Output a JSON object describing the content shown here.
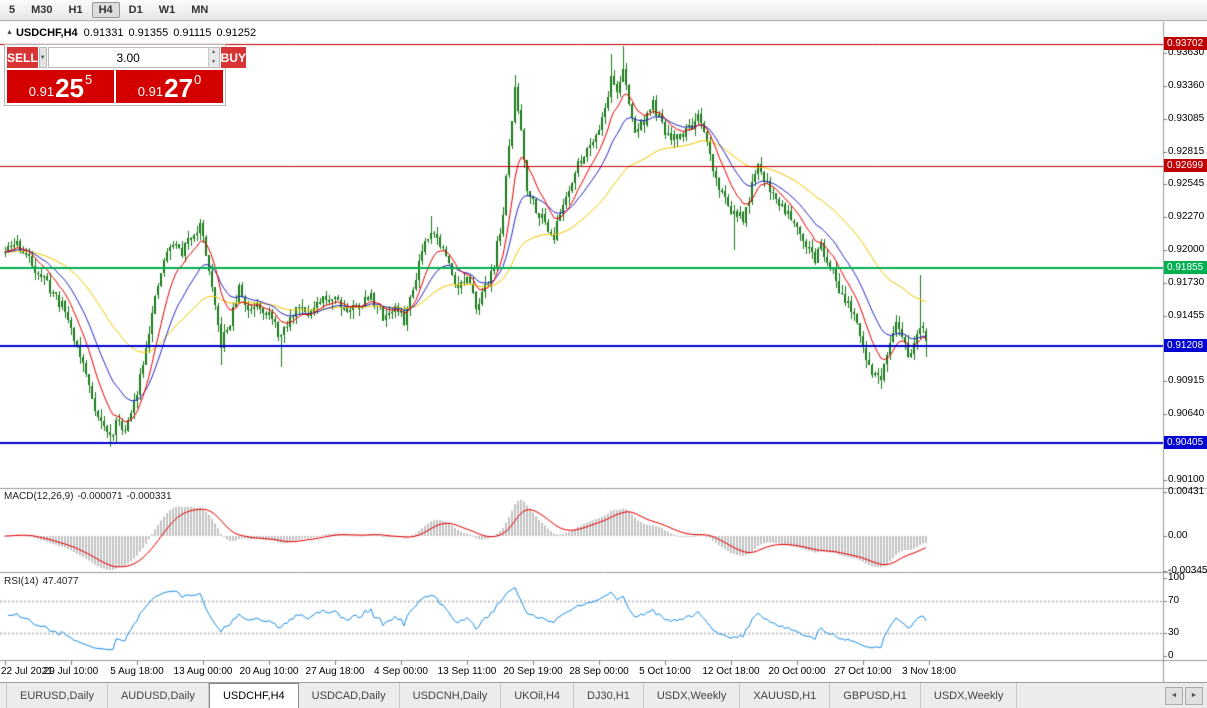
{
  "toolbar": {
    "timeframes": [
      {
        "label": "5",
        "active": false
      },
      {
        "label": "M30",
        "active": false
      },
      {
        "label": "H1",
        "active": false
      },
      {
        "label": "H4",
        "active": true
      },
      {
        "label": "D1",
        "active": false
      },
      {
        "label": "W1",
        "active": false
      },
      {
        "label": "MN",
        "active": false
      }
    ]
  },
  "header": {
    "symbol": "USDCHF,H4",
    "open": "0.91331",
    "high": "0.91355",
    "low": "0.91115",
    "close": "0.91252"
  },
  "one_click": {
    "sell_label": "SELL",
    "buy_label": "BUY",
    "volume": "3.00",
    "bid_prefix": "0.91",
    "bid_big": "25",
    "bid_pip": "5",
    "ask_prefix": "0.91",
    "ask_big": "27",
    "ask_pip": "0"
  },
  "tabs": {
    "items": [
      {
        "label": "EURUSD,Daily",
        "active": false
      },
      {
        "label": "AUDUSD,Daily",
        "active": false
      },
      {
        "label": "USDCHF,H4",
        "active": true
      },
      {
        "label": "USDCAD,Daily",
        "active": false
      },
      {
        "label": "USDCNH,Daily",
        "active": false
      },
      {
        "label": "UKOil,H4",
        "active": false
      },
      {
        "label": "DJ30,H1",
        "active": false
      },
      {
        "label": "USDX,Weekly",
        "active": false
      },
      {
        "label": "XAUUSD,H1",
        "active": false
      },
      {
        "label": "GBPUSD,H1",
        "active": false
      },
      {
        "label": "USDX,Weekly",
        "active": false
      }
    ],
    "scroll_left": "◄",
    "scroll_right": "►"
  },
  "chart_data": {
    "type": "candlestick",
    "symbol": "USDCHF",
    "timeframe": "H4",
    "last_bar": {
      "open": 0.91331,
      "high": 0.91355,
      "low": 0.91115,
      "close": 0.91252
    },
    "num_bars": 308,
    "bars_per_label": 22,
    "price_scale": {
      "top": 0.9382,
      "bottom": 0.9004
    },
    "price_ticks": [
      "0.93630",
      "0.93360",
      "0.93085",
      "0.92815",
      "0.92545",
      "0.92270",
      "0.92000",
      "0.91730",
      "0.91455",
      "0.91185",
      "0.90915",
      "0.90640",
      "0.90370",
      "0.90100"
    ],
    "time_labels": [
      "22 Jul 2021",
      "29 Jul 10:00",
      "5 Aug 18:00",
      "13 Aug 00:00",
      "20 Aug 10:00",
      "27 Aug 18:00",
      "4 Sep 00:00",
      "13 Sep 11:00",
      "20 Sep 19:00",
      "28 Sep 00:00",
      "5 Oct 10:00",
      "12 Oct 18:00",
      "20 Oct 00:00",
      "27 Oct 10:00",
      "3 Nov 18:00"
    ],
    "horizontal_lines": [
      {
        "price": 0.93702,
        "label": "0.93702",
        "color": "#c00000",
        "width": 1
      },
      {
        "price": 0.92699,
        "label": "0.92699",
        "color": "#c00000",
        "width": 1
      },
      {
        "price": 0.91855,
        "label": "0.91855",
        "color": "#00b050",
        "width": 2
      },
      {
        "price": 0.91208,
        "label": "0.91208",
        "color": "#0000d0",
        "width": 2
      },
      {
        "price": 0.90405,
        "label": "0.90405",
        "color": "#0000d0",
        "width": 2
      }
    ],
    "moving_averages": [
      {
        "period": 9,
        "color": "#e80000"
      },
      {
        "period": 19,
        "color": "#2828c8"
      },
      {
        "period": 50,
        "color": "#f0c800"
      }
    ],
    "candle_colors": {
      "up_fill": "#ffffff",
      "down_fill": "#1a7a1a",
      "outline": "#1a7a1a"
    },
    "macd": {
      "title": "MACD(12,26,9)",
      "main_value": "-0.000071",
      "signal_value": "-0.000331",
      "fast": 12,
      "slow": 26,
      "signal": 9,
      "axis_labels": [
        "0.00431",
        "0.00",
        "-0.00345"
      ],
      "axis_values": [
        0.00431,
        0,
        -0.00345
      ],
      "histogram_color": "#c4c4c4",
      "signal_color": "#e80000"
    },
    "rsi": {
      "title": "RSI(14)",
      "value": "47.4077",
      "period": 14,
      "axis_labels": [
        "100",
        "70",
        "30",
        "0"
      ],
      "axis_values": [
        100,
        70,
        30,
        0
      ],
      "levels": [
        30,
        70
      ],
      "line_color": "#2090e8"
    },
    "close_path_anchors": [
      [
        0,
        0.9198
      ],
      [
        4,
        0.9206
      ],
      [
        8,
        0.9192
      ],
      [
        14,
        0.9172
      ],
      [
        20,
        0.915
      ],
      [
        26,
        0.9105
      ],
      [
        31,
        0.9062
      ],
      [
        35,
        0.9045
      ],
      [
        38,
        0.906
      ],
      [
        40,
        0.905
      ],
      [
        43,
        0.9072
      ],
      [
        47,
        0.9122
      ],
      [
        50,
        0.9158
      ],
      [
        53,
        0.9192
      ],
      [
        56,
        0.9206
      ],
      [
        59,
        0.9198
      ],
      [
        62,
        0.9212
      ],
      [
        65,
        0.922
      ],
      [
        67,
        0.9198
      ],
      [
        69,
        0.9165
      ],
      [
        72,
        0.9122
      ],
      [
        75,
        0.914
      ],
      [
        78,
        0.9168
      ],
      [
        81,
        0.915
      ],
      [
        84,
        0.9158
      ],
      [
        88,
        0.9146
      ],
      [
        92,
        0.9128
      ],
      [
        95,
        0.9142
      ],
      [
        98,
        0.9155
      ],
      [
        102,
        0.9148
      ],
      [
        106,
        0.9158
      ],
      [
        110,
        0.9162
      ],
      [
        114,
        0.915
      ],
      [
        118,
        0.9155
      ],
      [
        122,
        0.9162
      ],
      [
        126,
        0.9145
      ],
      [
        130,
        0.9152
      ],
      [
        133,
        0.9142
      ],
      [
        136,
        0.9168
      ],
      [
        139,
        0.9202
      ],
      [
        142,
        0.9218
      ],
      [
        145,
        0.9205
      ],
      [
        148,
        0.9188
      ],
      [
        151,
        0.917
      ],
      [
        154,
        0.9175
      ],
      [
        157,
        0.9155
      ],
      [
        160,
        0.9168
      ],
      [
        163,
        0.919
      ],
      [
        166,
        0.923
      ],
      [
        168,
        0.9285
      ],
      [
        170,
        0.9332
      ],
      [
        172,
        0.93
      ],
      [
        174,
        0.9252
      ],
      [
        177,
        0.9235
      ],
      [
        180,
        0.9222
      ],
      [
        183,
        0.9212
      ],
      [
        186,
        0.9238
      ],
      [
        189,
        0.9258
      ],
      [
        192,
        0.9275
      ],
      [
        195,
        0.9288
      ],
      [
        198,
        0.9302
      ],
      [
        200,
        0.9318
      ],
      [
        202,
        0.9342
      ],
      [
        204,
        0.9332
      ],
      [
        206,
        0.9348
      ],
      [
        208,
        0.932
      ],
      [
        210,
        0.9298
      ],
      [
        213,
        0.9308
      ],
      [
        216,
        0.932
      ],
      [
        219,
        0.9302
      ],
      [
        222,
        0.929
      ],
      [
        225,
        0.9295
      ],
      [
        228,
        0.9302
      ],
      [
        231,
        0.9308
      ],
      [
        234,
        0.9288
      ],
      [
        237,
        0.9258
      ],
      [
        240,
        0.9242
      ],
      [
        243,
        0.923
      ],
      [
        246,
        0.9225
      ],
      [
        249,
        0.9252
      ],
      [
        251,
        0.9268
      ],
      [
        254,
        0.9256
      ],
      [
        257,
        0.9242
      ],
      [
        260,
        0.9234
      ],
      [
        264,
        0.9222
      ],
      [
        267,
        0.9205
      ],
      [
        270,
        0.9192
      ],
      [
        272,
        0.9204
      ],
      [
        275,
        0.9188
      ],
      [
        278,
        0.9168
      ],
      [
        281,
        0.9158
      ],
      [
        284,
        0.9135
      ],
      [
        287,
        0.911
      ],
      [
        290,
        0.9096
      ],
      [
        292,
        0.9093
      ],
      [
        295,
        0.912
      ],
      [
        297,
        0.9136
      ],
      [
        299,
        0.913
      ],
      [
        301,
        0.9114
      ],
      [
        303,
        0.9122
      ],
      [
        305,
        0.9132
      ],
      [
        306,
        0.9138
      ],
      [
        307,
        0.91252
      ]
    ],
    "wick_spikes": [
      {
        "bar": 35,
        "low": 0.9037
      },
      {
        "bar": 37,
        "low": 0.904
      },
      {
        "bar": 65,
        "high": 0.9226
      },
      {
        "bar": 72,
        "low": 0.9105
      },
      {
        "bar": 92,
        "low": 0.9103
      },
      {
        "bar": 142,
        "high": 0.9228
      },
      {
        "bar": 170,
        "high": 0.9345
      },
      {
        "bar": 202,
        "high": 0.9362
      },
      {
        "bar": 206,
        "high": 0.9369
      },
      {
        "bar": 243,
        "low": 0.92
      },
      {
        "bar": 292,
        "low": 0.9085
      },
      {
        "bar": 305,
        "high": 0.9179
      }
    ],
    "seed": 11
  }
}
